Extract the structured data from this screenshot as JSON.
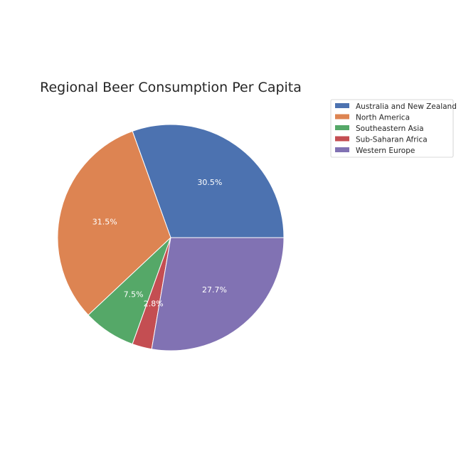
{
  "chart_data": {
    "type": "pie",
    "title": "Regional Beer Consumption Per Capita",
    "categories": [
      "Australia and New Zealand",
      "North America",
      "Southeastern Asia",
      "Sub-Saharan Africa",
      "Western Europe"
    ],
    "values": [
      30.5,
      31.5,
      7.5,
      2.8,
      27.7
    ],
    "labels": [
      "30.5%",
      "31.5%",
      "7.5%",
      "2.8%",
      "27.7%"
    ],
    "colors": [
      "#4c72b0",
      "#dd8452",
      "#55a868",
      "#c44e52",
      "#8172b3"
    ],
    "start_angle": "0 degrees (3 o'clock), counter-clockwise",
    "legend_placement": "upper-right, outside pie"
  }
}
